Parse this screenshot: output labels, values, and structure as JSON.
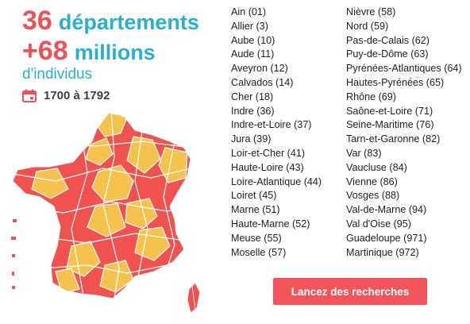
{
  "stats": {
    "departments_count": "36",
    "departments_label": "départements",
    "individuals_count": "+68",
    "individuals_unit": "millions",
    "individuals_label": "d'individus"
  },
  "period": {
    "icon": "calendar-icon",
    "label": "1700 à 1792"
  },
  "map": {
    "icon": "france-departments-map",
    "covered_color": "#f0534f",
    "uncovered_color": "#f4c24d",
    "border_color": "#ffffff"
  },
  "departments": {
    "left": [
      "Ain (01)",
      "Allier (3)",
      "Aube (10)",
      "Aude (11)",
      "Aveyron (12)",
      "Calvados (14)",
      "Cher (18)",
      "Indre (36)",
      "Indre-et-Loire (37)",
      "Jura (39)",
      "Loir-et-Cher (41)",
      "Haute-Loire (43)",
      "Loire-Atlantique (44)",
      "Loiret (45)",
      "Marne (51)",
      "Haute-Marne (52)",
      "Meuse (55)",
      "Moselle (57)"
    ],
    "right": [
      "Nièvre (58)",
      "Nord (59)",
      "Pas-de-Calais (62)",
      "Puy-de-Dôme (63)",
      "Pyrénées-Atlantiques (64)",
      "Hautes-Pyrénées (65)",
      "Rhône (69)",
      "Saône-et-Loire (71)",
      "Seine-Maritime (76)",
      "Tarn-et-Garonne (82)",
      "Var (83)",
      "Vaucluse (84)",
      "Vienne (86)",
      "Vosges (88)",
      "Val-de-Marne (94)",
      "Val d'Oise (95)",
      "Guadeloupe (971)",
      "Martinique (972)"
    ]
  },
  "cta": {
    "label": "Lancez des recherches",
    "color": "#f2545b"
  }
}
